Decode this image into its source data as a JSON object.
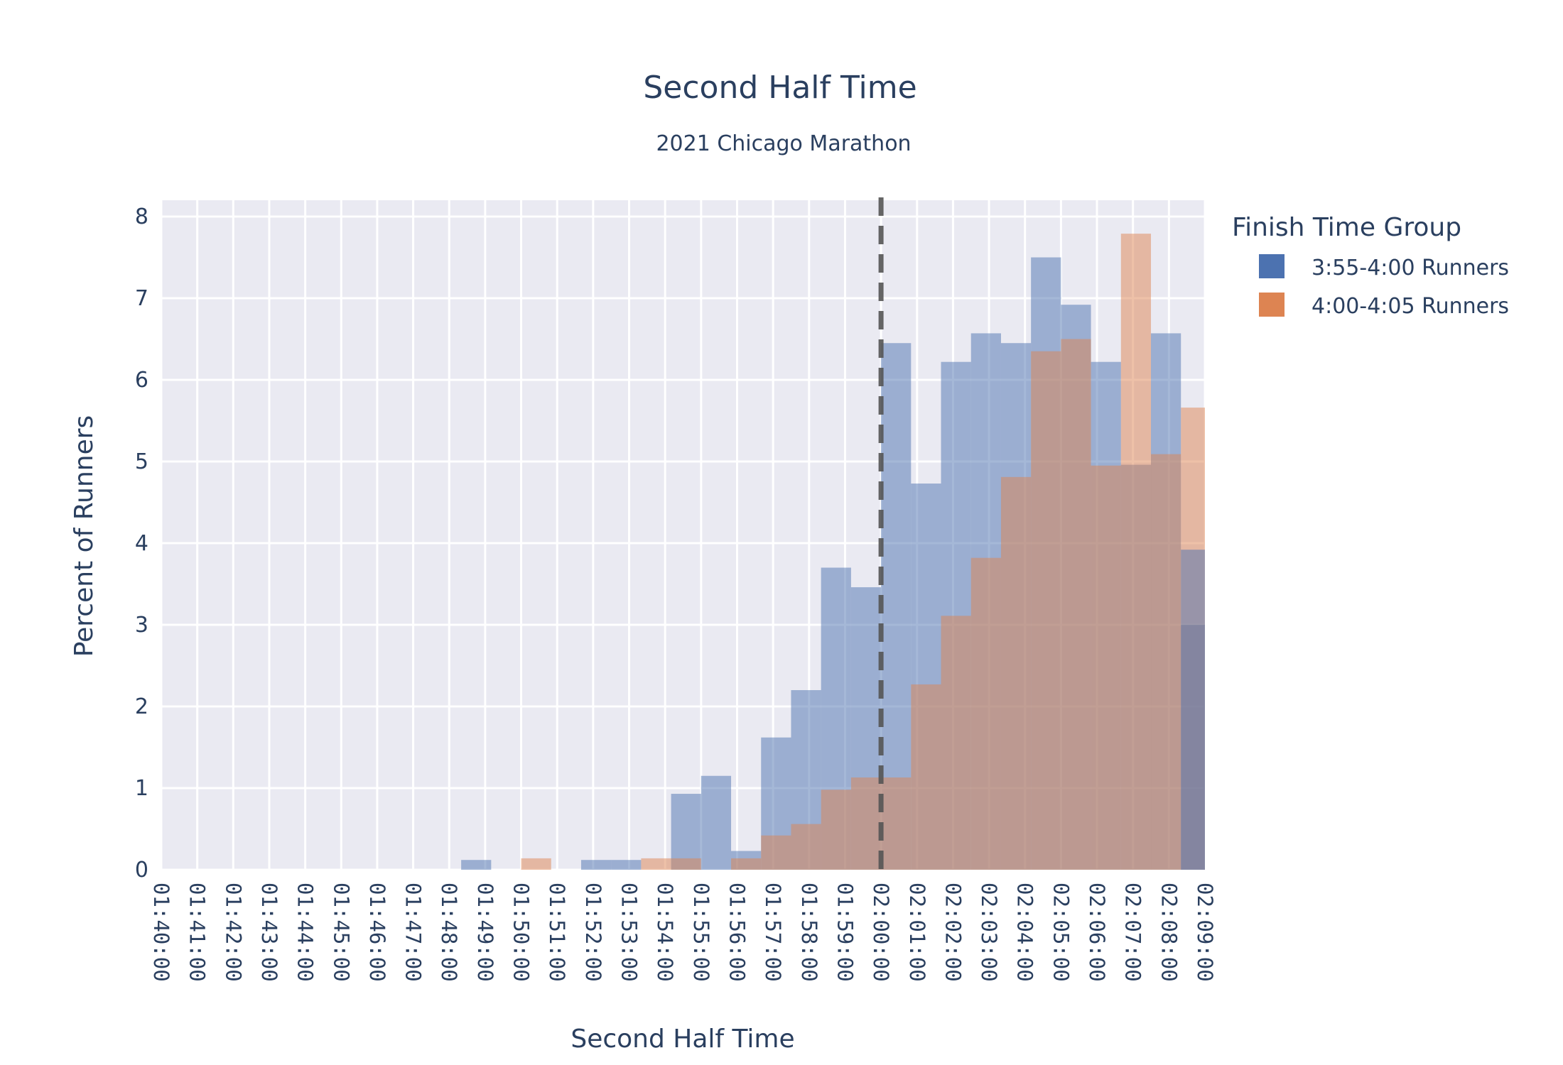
{
  "chart_data": {
    "type": "bar",
    "title": "Second Half Time",
    "subtitle": "2021 Chicago Marathon",
    "xlabel": "Second Half Time",
    "ylabel": "Percent of Runners",
    "ylim": [
      0,
      8.2
    ],
    "yticks": [
      0,
      1,
      2,
      3,
      4,
      5,
      6,
      7,
      8
    ],
    "grid": true,
    "barmode": "overlay",
    "bin_width_seconds": 50,
    "x_start": "01:40:00",
    "x_end": "02:09:00",
    "x_ticks": [
      "01:40:00",
      "01:41:00",
      "01:42:00",
      "01:43:00",
      "01:44:00",
      "01:45:00",
      "01:46:00",
      "01:47:00",
      "01:48:00",
      "01:49:00",
      "01:50:00",
      "01:51:00",
      "01:52:00",
      "01:53:00",
      "01:54:00",
      "01:55:00",
      "01:56:00",
      "01:57:00",
      "01:58:00",
      "01:59:00",
      "02:00:00",
      "02:01:00",
      "02:02:00",
      "02:03:00",
      "02:04:00",
      "02:05:00",
      "02:06:00",
      "02:07:00",
      "02:08:00",
      "02:09:00"
    ],
    "reference_line": {
      "x": "02:00:00",
      "style": "dashed"
    },
    "bin_starts": [
      "01:48:20",
      "01:49:10",
      "01:50:00",
      "01:50:50",
      "01:51:40",
      "01:52:30",
      "01:53:20",
      "01:54:10",
      "01:55:00",
      "01:55:50",
      "01:56:40",
      "01:57:30",
      "01:58:20",
      "01:59:10",
      "02:00:00",
      "02:00:50",
      "02:01:40",
      "02:02:30",
      "02:03:20",
      "02:04:10",
      "02:05:00",
      "02:05:50",
      "02:06:40",
      "02:07:30",
      "02:08:20"
    ],
    "legend": {
      "title": "Finish Time Group",
      "placement": "top-right"
    },
    "series": [
      {
        "name": "3:55-4:00 Runners",
        "color": "#4c72b0",
        "values": [
          0.12,
          0,
          0,
          0,
          0.12,
          0.12,
          0,
          0.93,
          1.15,
          0.23,
          1.62,
          2.2,
          3.7,
          3.46,
          6.45,
          4.73,
          6.22,
          6.57,
          6.45,
          7.5,
          6.92,
          6.22,
          4.96,
          6.57,
          3.0
        ]
      },
      {
        "name": "4:00-4:05 Runners",
        "color": "#dd8452",
        "values": [
          0,
          0,
          0.14,
          0,
          0,
          0,
          0.14,
          0.14,
          0,
          0.14,
          0.42,
          0.56,
          0.98,
          1.13,
          1.13,
          2.27,
          3.11,
          3.82,
          4.81,
          6.35,
          6.5,
          4.95,
          7.79,
          5.09,
          5.66
        ]
      },
      {
        "name": "3:55-4:00 Runners",
        "color": "#4c72b0",
        "values": [
          0,
          0,
          0,
          0,
          0,
          0,
          0,
          0,
          0,
          0,
          0,
          0,
          0,
          0,
          0,
          0,
          0,
          0,
          0,
          0,
          0,
          0,
          0,
          0,
          3.92
        ]
      }
    ]
  }
}
